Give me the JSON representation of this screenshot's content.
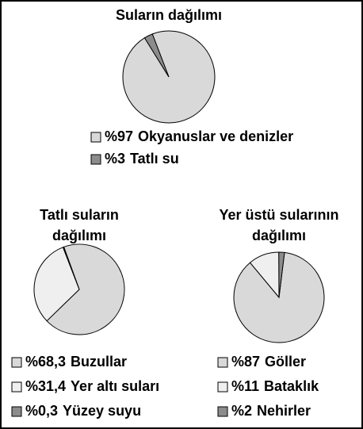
{
  "chart_data": [
    {
      "type": "pie",
      "title": [
        "Suların dağılımı"
      ],
      "categories": [
        "Okyanuslar ve denizler",
        "Tatlı su"
      ],
      "values": [
        97,
        3
      ],
      "value_labels": [
        "%97",
        "%3"
      ],
      "colors": [
        "#d9d9d9",
        "#8c8c8c"
      ]
    },
    {
      "type": "pie",
      "title": [
        "Tatlı suların",
        "dağılımı"
      ],
      "categories": [
        "Buzullar",
        "Yer altı suları",
        "Yüzey suyu"
      ],
      "values": [
        68.3,
        31.4,
        0.3
      ],
      "value_labels": [
        "%68,3",
        "%31,4",
        "%0,3"
      ],
      "colors": [
        "#d9d9d9",
        "#efefef",
        "#8c8c8c"
      ]
    },
    {
      "type": "pie",
      "title": [
        "Yer üstü sularının",
        "dağılımı"
      ],
      "categories": [
        "Göller",
        "Bataklık",
        "Nehirler"
      ],
      "values": [
        87,
        11,
        2
      ],
      "value_labels": [
        "%87",
        "%11",
        "%2"
      ],
      "colors": [
        "#d9d9d9",
        "#efefef",
        "#8c8c8c"
      ]
    }
  ]
}
